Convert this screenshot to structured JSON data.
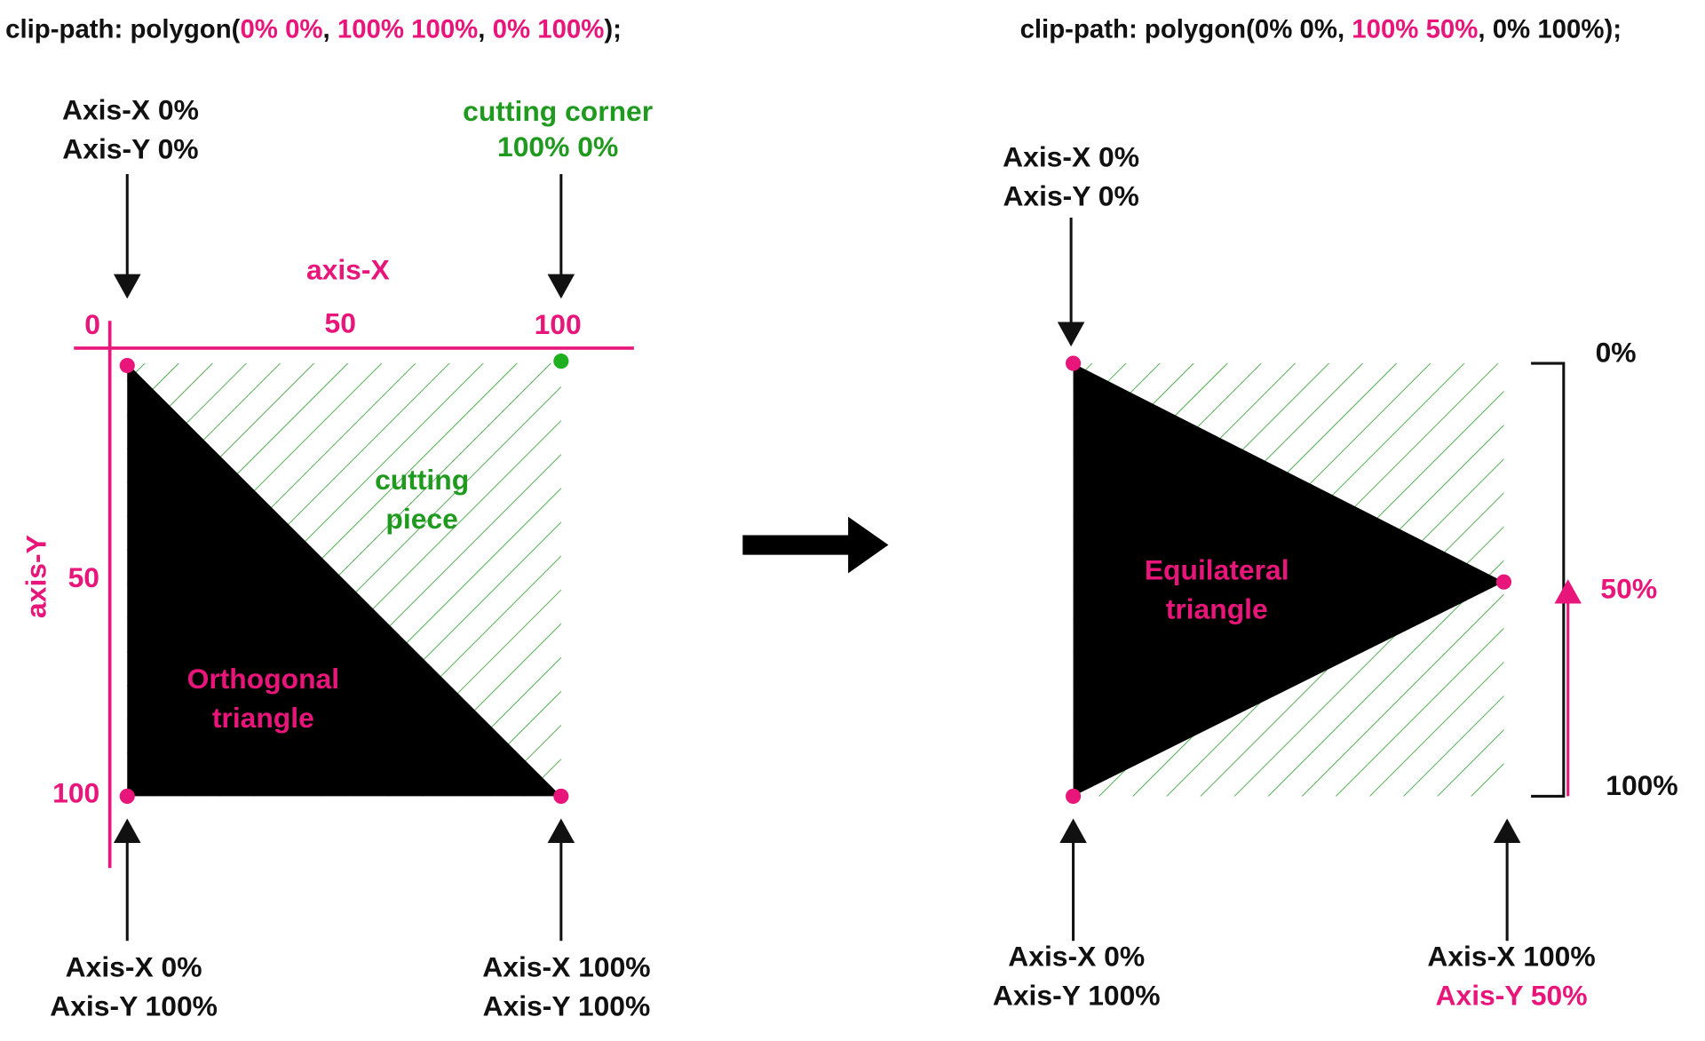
{
  "left": {
    "code": [
      "clip-path: polygon(",
      "0% 0%",
      ", ",
      "100% 100%",
      ", ",
      "0% 100%",
      ");"
    ],
    "top_left": [
      "Axis-X 0%",
      "Axis-Y 0%"
    ],
    "corner": [
      "cutting corner",
      "100% 0%"
    ],
    "axis_x": "axis-X",
    "axis_y": "axis-Y",
    "x_ticks": [
      "0",
      "50",
      "100"
    ],
    "y_ticks": [
      "50",
      "100"
    ],
    "cut_piece": [
      "cutting",
      "piece"
    ],
    "shape": [
      "Orthogonal",
      "triangle"
    ],
    "bottom_left": [
      "Axis-X 0%",
      "Axis-Y 100%"
    ],
    "bottom_right": [
      "Axis-X 100%",
      "Axis-Y 100%"
    ]
  },
  "right": {
    "code": [
      "clip-path: polygon(0% 0%, ",
      "100% 50%",
      ", 0% 100%);"
    ],
    "top_left": [
      "Axis-X 0%",
      "Axis-Y 0%"
    ],
    "shape": [
      "Equilateral",
      "triangle"
    ],
    "scale": [
      "0%",
      "50%",
      "100%"
    ],
    "bottom_left": [
      "Axis-X 0%",
      "Axis-Y 100%"
    ],
    "bottom_right": [
      "Axis-X 100%",
      "Axis-Y 50%"
    ]
  }
}
